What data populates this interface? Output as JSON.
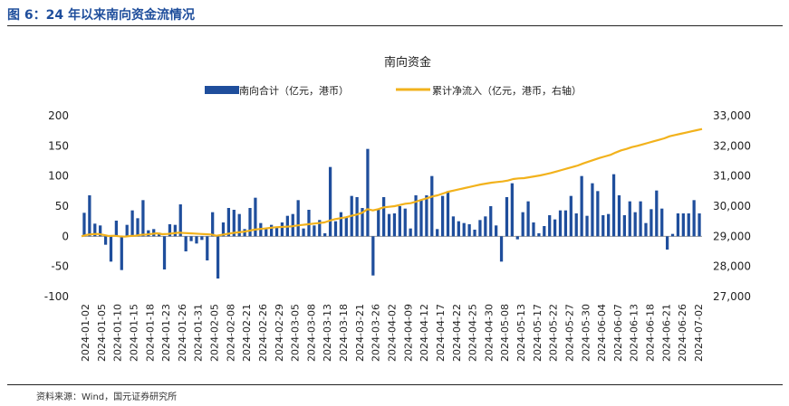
{
  "figure": {
    "label": "图 6：24 年以来南向资金流情况",
    "source": "资料来源：Wind，国元证券研究所"
  },
  "colors": {
    "bar": "#1f4e9c",
    "line": "#f2b21c",
    "axis": "#999999",
    "text": "#222222"
  },
  "chart_data": {
    "type": "bar+line",
    "title": "南向资金",
    "legend_position": "top",
    "series": [
      {
        "name": "南向合计（亿元，港币）",
        "kind": "bar",
        "axis": "left"
      },
      {
        "name": "累计净流入（亿元，港币，右轴）",
        "kind": "line",
        "axis": "right"
      }
    ],
    "left_axis": {
      "min": -100,
      "max": 200,
      "ticks": [
        -100,
        -50,
        0,
        50,
        100,
        150,
        200
      ],
      "labels": [
        "-100",
        "-50",
        "0",
        "50",
        "100",
        "150",
        "200"
      ]
    },
    "right_axis": {
      "min": 27000,
      "max": 33000,
      "ticks": [
        27000,
        28000,
        29000,
        30000,
        31000,
        32000,
        33000
      ],
      "labels": [
        "27,000",
        "28,000",
        "29,000",
        "30,000",
        "31,000",
        "32,000",
        "33,000"
      ]
    },
    "x_tick_labels": [
      "2024-01-02",
      "2024-01-05",
      "2024-01-10",
      "2024-01-15",
      "2024-01-18",
      "2024-01-23",
      "2024-01-26",
      "2024-01-31",
      "2024-02-05",
      "2024-02-08",
      "2024-02-21",
      "2024-02-26",
      "2024-02-29",
      "2024-03-05",
      "2024-03-08",
      "2024-03-13",
      "2024-03-18",
      "2024-03-21",
      "2024-03-26",
      "2024-04-02",
      "2024-04-09",
      "2024-04-12",
      "2024-04-17",
      "2024-04-22",
      "2024-04-25",
      "2024-04-30",
      "2024-05-08",
      "2024-05-13",
      "2024-05-17",
      "2024-05-22",
      "2024-05-27",
      "2024-05-30",
      "2024-06-04",
      "2024-06-07",
      "2024-06-13",
      "2024-06-18",
      "2024-06-21",
      "2024-06-26",
      "2024-07-02"
    ],
    "bar_values": [
      39,
      68,
      21,
      18,
      -14,
      -42,
      26,
      -56,
      19,
      43,
      30,
      60,
      10,
      12,
      6,
      -55,
      20,
      19,
      53,
      -25,
      -8,
      -12,
      -6,
      -40,
      40,
      -70,
      23,
      47,
      44,
      37,
      12,
      47,
      64,
      22,
      14,
      19,
      15,
      23,
      34,
      37,
      60,
      13,
      44,
      18,
      27,
      5,
      115,
      25,
      40,
      31,
      67,
      65,
      47,
      145,
      -65,
      45,
      65,
      37,
      38,
      50,
      46,
      13,
      68,
      61,
      68,
      100,
      12,
      67,
      75,
      33,
      25,
      22,
      20,
      11,
      27,
      33,
      50,
      18,
      -42,
      65,
      88,
      -5,
      40,
      58,
      23,
      5,
      17,
      35,
      28,
      43,
      43,
      67,
      38,
      100,
      34,
      88,
      75,
      35,
      37,
      103,
      68,
      35,
      58,
      40,
      58,
      22,
      45,
      76,
      46,
      -22,
      4,
      38,
      38,
      38,
      60,
      38
    ],
    "line_values": [
      29000,
      29050,
      29070,
      29080,
      29050,
      29010,
      29020,
      29000,
      28990,
      29010,
      29020,
      29050,
      29060,
      29080,
      29100,
      29070,
      29080,
      29100,
      29120,
      29110,
      29100,
      29090,
      29080,
      29070,
      29060,
      29020,
      29050,
      29080,
      29110,
      29130,
      29150,
      29180,
      29220,
      29240,
      29260,
      29280,
      29300,
      29310,
      29320,
      29330,
      29360,
      29380,
      29400,
      29420,
      29440,
      29460,
      29520,
      29570,
      29600,
      29630,
      29680,
      29720,
      29780,
      29900,
      29860,
      29900,
      29960,
      29980,
      30000,
      30040,
      30080,
      30100,
      30150,
      30210,
      30260,
      30320,
      30360,
      30420,
      30480,
      30520,
      30560,
      30600,
      30640,
      30680,
      30720,
      30750,
      30780,
      30800,
      30820,
      30850,
      30900,
      30920,
      30930,
      30960,
      30990,
      31020,
      31060,
      31100,
      31150,
      31200,
      31250,
      31300,
      31350,
      31420,
      31480,
      31540,
      31600,
      31650,
      31700,
      31780,
      31850,
      31900,
      31960,
      32000,
      32050,
      32100,
      32150,
      32200,
      32250,
      32320,
      32360,
      32400,
      32440,
      32480,
      32520,
      32560
    ]
  }
}
